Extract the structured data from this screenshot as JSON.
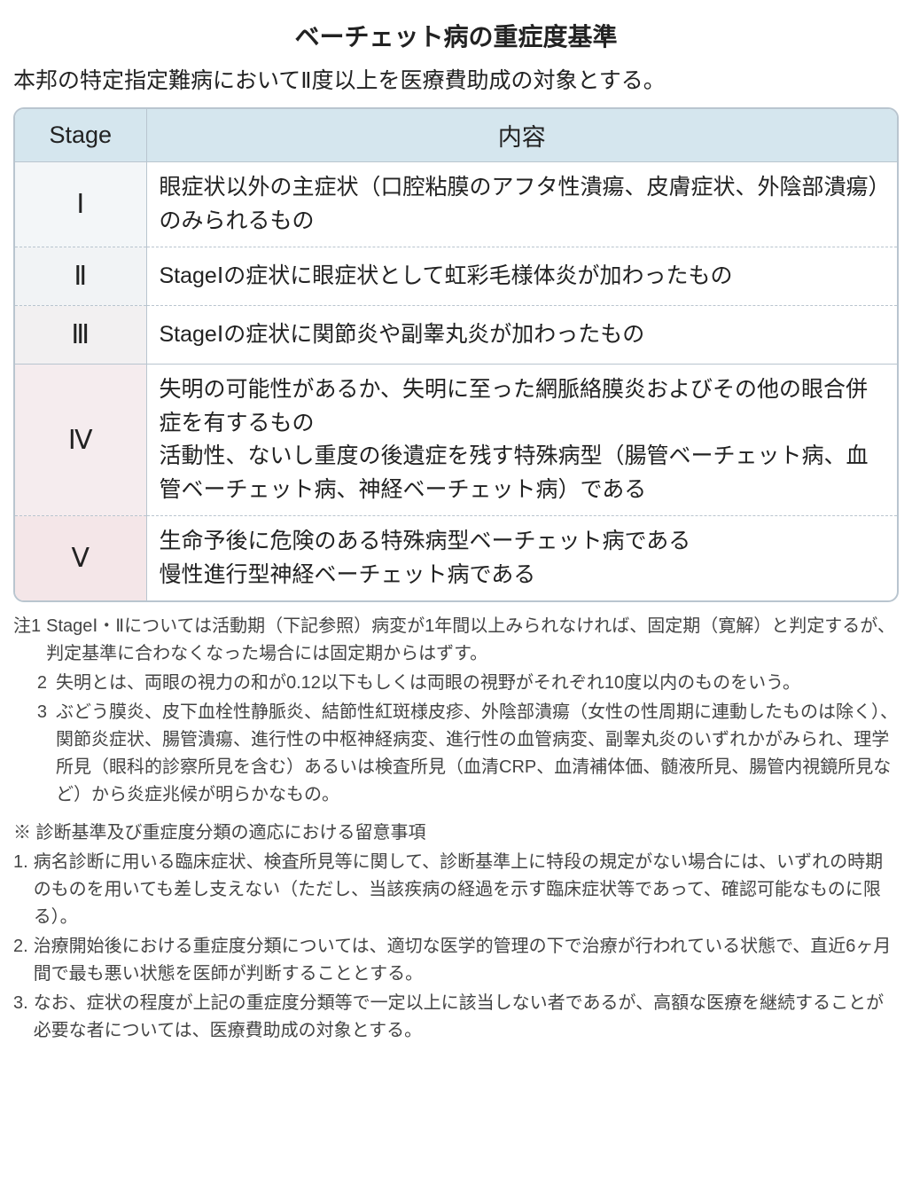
{
  "title": "ベーチェット病の重症度基準",
  "subtitle": "本邦の特定指定難病においてⅡ度以上を医療費助成の対象とする。",
  "table": {
    "header_bg": "#d5e6ee",
    "border_color": "#b9c5cf",
    "stage_bg_light": "#f5f7f9",
    "stage_bg_pink_light": "#f6eff0",
    "stage_bg_pink": "#f3e7e8",
    "columns": {
      "stage": "Stage",
      "content": "内容"
    },
    "rows": [
      {
        "stage": "Ⅰ",
        "stage_bg": "#f3f6f8",
        "content": "眼症状以外の主症状（口腔粘膜のアフタ性潰瘍、皮膚症状、外陰部潰瘍）のみられるもの",
        "sep": "dashed"
      },
      {
        "stage": "Ⅱ",
        "stage_bg": "#f1f3f5",
        "content": "StageⅠの症状に眼症状として虹彩毛様体炎が加わったもの",
        "sep": "dashed"
      },
      {
        "stage": "Ⅲ",
        "stage_bg": "#f2f0f1",
        "content": "StageⅠの症状に関節炎や副睾丸炎が加わったもの",
        "sep": "solid"
      },
      {
        "stage": "Ⅳ",
        "stage_bg": "#f5ecee",
        "content": "失明の可能性があるか、失明に至った網脈絡膜炎およびその他の眼合併症を有するもの\n活動性、ないし重度の後遺症を残す特殊病型（腸管ベーチェット病、血管ベーチェット病、神経ベーチェット病）である",
        "sep": "dashed"
      },
      {
        "stage": "Ⅴ",
        "stage_bg": "#f4e6e8",
        "content": "生命予後に危険のある特殊病型ベーチェット病である\n慢性進行型神経ベーチェット病である",
        "sep": "none"
      }
    ]
  },
  "notes": [
    {
      "label": "注1",
      "text": "StageⅠ・Ⅱについては活動期（下記参照）病変が1年間以上みられなければ、固定期（寛解）と判定するが、判定基準に合わなくなった場合には固定期からはずす。"
    },
    {
      "label": "2",
      "text": "失明とは、両眼の視力の和が0.12以下もしくは両眼の視野がそれぞれ10度以内のものをいう。"
    },
    {
      "label": "3",
      "text": "ぶどう膜炎、皮下血栓性静脈炎、結節性紅斑様皮疹、外陰部潰瘍（女性の性周期に連動したものは除く）、関節炎症状、腸管潰瘍、進行性の中枢神経病変、進行性の血管病変、副睾丸炎のいずれかがみられ、理学所見（眼科的診察所見を含む）あるいは検査所見（血清CRP、血清補体価、髄液所見、腸管内視鏡所見など）から炎症兆候が明らかなもの。"
    }
  ],
  "caution": {
    "header": "※ 診断基準及び重症度分類の適応における留意事項",
    "items": [
      {
        "num": "1.",
        "text": "病名診断に用いる臨床症状、検査所見等に関して、診断基準上に特段の規定がない場合には、いずれの時期のものを用いても差し支えない（ただし、当該疾病の経過を示す臨床症状等であって、確認可能なものに限る）。"
      },
      {
        "num": "2.",
        "text": "治療開始後における重症度分類については、適切な医学的管理の下で治療が行われている状態で、直近6ヶ月間で最も悪い状態を医師が判断することとする。"
      },
      {
        "num": "3.",
        "text": "なお、症状の程度が上記の重症度分類等で一定以上に該当しない者であるが、高額な医療を継続することが必要な者については、医療費助成の対象とする。"
      }
    ]
  }
}
